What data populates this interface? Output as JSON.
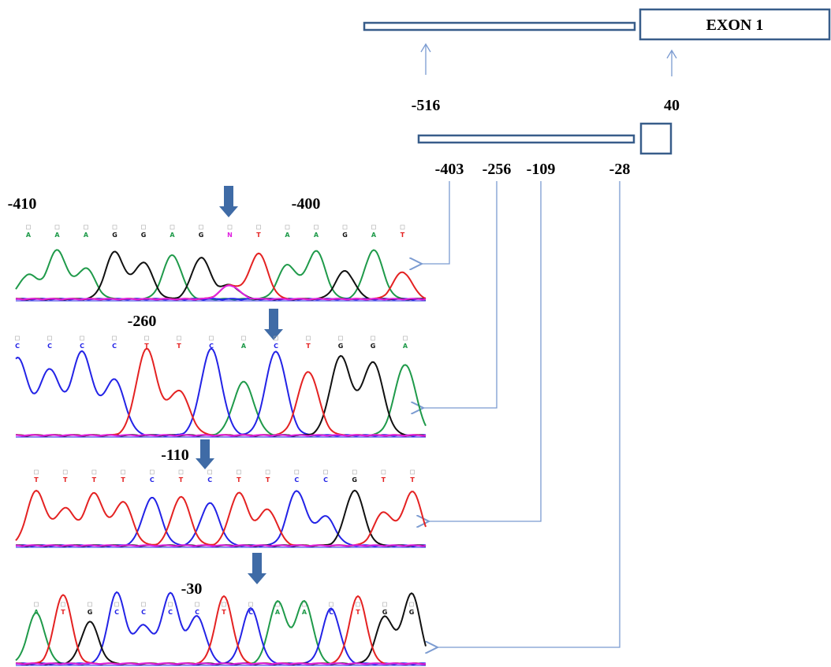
{
  "gene_map": {
    "exon_label": "EXON 1",
    "upper_positions": [
      "-516",
      "40"
    ],
    "lower_positions": [
      "-403",
      "-256",
      "-109",
      "-28"
    ]
  },
  "traces": [
    {
      "labels": [
        "-410",
        "-400"
      ],
      "bases": [
        "A",
        "A",
        "A",
        "G",
        "G",
        "A",
        "G",
        "N",
        "T",
        "A",
        "A",
        "G",
        "A",
        "T"
      ]
    },
    {
      "labels": [
        "-260"
      ],
      "bases": [
        "C",
        "C",
        "C",
        "C",
        "T",
        "T",
        "C",
        "A",
        "C",
        "T",
        "G",
        "G",
        "A"
      ]
    },
    {
      "labels": [
        "-110"
      ],
      "bases": [
        "T",
        "T",
        "T",
        "T",
        "C",
        "T",
        "C",
        "T",
        "T",
        "C",
        "C",
        "G",
        "T",
        "T"
      ]
    },
    {
      "labels": [
        "-30"
      ],
      "bases": [
        "A",
        "T",
        "G",
        "C",
        "C",
        "C",
        "C",
        "T",
        "C",
        "A",
        "A",
        "C",
        "T",
        "G",
        "G"
      ]
    }
  ]
}
